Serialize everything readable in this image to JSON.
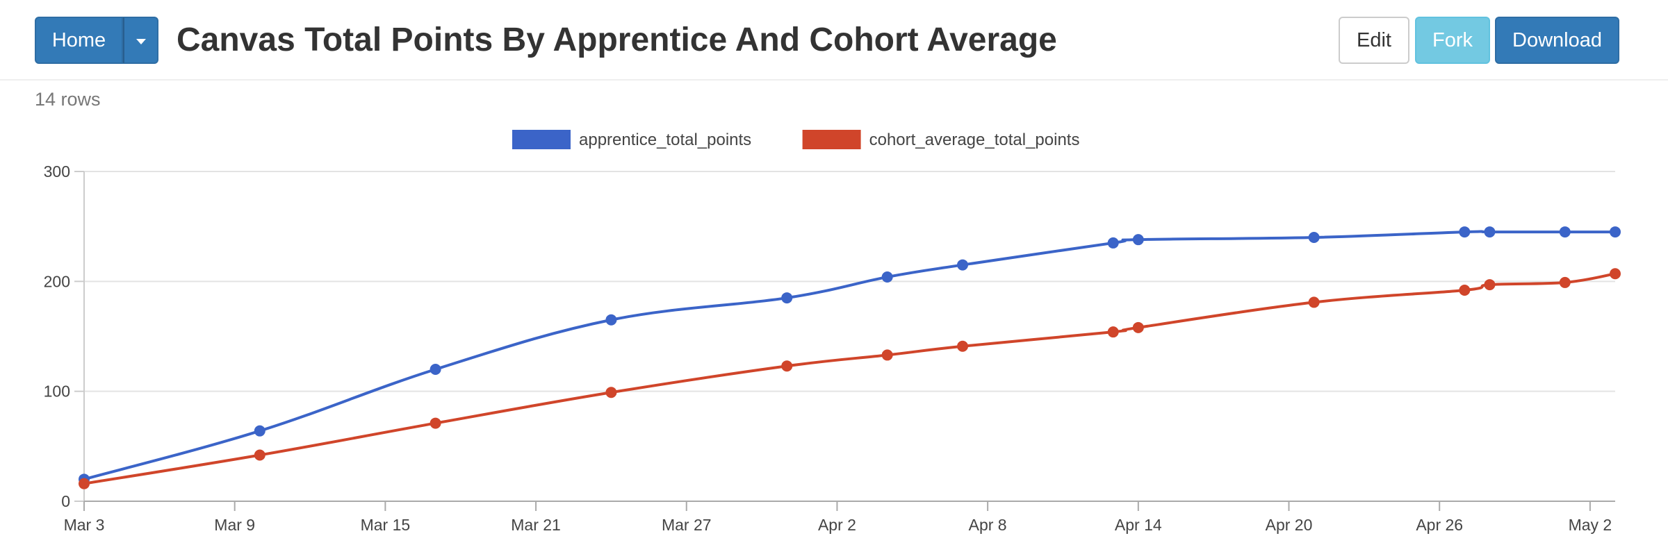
{
  "header": {
    "home_label": "Home",
    "title": "Canvas Total Points By Apprentice And Cohort Average",
    "edit_label": "Edit",
    "fork_label": "Fork",
    "download_label": "Download"
  },
  "row_count": "14 rows",
  "icons": {
    "dropdown": "caret-down-icon"
  },
  "colors": {
    "primary_button": "#337ab7",
    "fork_button": "#5bc0de",
    "apprentice_series": "#3b64c8",
    "cohort_series": "#d0452a"
  },
  "chart_data": {
    "type": "line",
    "title": "",
    "xlabel": "",
    "ylabel": "",
    "x_type": "date",
    "xlim": [
      "2024-03-03",
      "2024-05-03"
    ],
    "ylim": [
      0,
      300
    ],
    "y_ticks": [
      0,
      100,
      200,
      300
    ],
    "y_tick_labels": [
      "0",
      "100",
      "200",
      "300"
    ],
    "x_ticks": [
      "2024-03-03",
      "2024-03-09",
      "2024-03-15",
      "2024-03-21",
      "2024-03-27",
      "2024-04-02",
      "2024-04-08",
      "2024-04-14",
      "2024-04-20",
      "2024-04-26",
      "2024-05-02"
    ],
    "x_tick_labels": [
      "Mar 3",
      "Mar 9",
      "Mar 15",
      "Mar 21",
      "Mar 27",
      "Apr 2",
      "Apr 8",
      "Apr 14",
      "Apr 20",
      "Apr 26",
      "May 2"
    ],
    "grid": true,
    "legend_position": "top",
    "x": [
      "2024-03-03",
      "2024-03-10",
      "2024-03-17",
      "2024-03-24",
      "2024-03-31",
      "2024-04-04",
      "2024-04-07",
      "2024-04-13",
      "2024-04-14",
      "2024-04-21",
      "2024-04-27",
      "2024-04-28",
      "2024-05-01",
      "2024-05-03"
    ],
    "series": [
      {
        "name": "apprentice_total_points",
        "color": "#3b64c8",
        "values": [
          20,
          64,
          120,
          165,
          185,
          204,
          215,
          235,
          238,
          240,
          245,
          245,
          245,
          245
        ]
      },
      {
        "name": "cohort_average_total_points",
        "color": "#d0452a",
        "values": [
          16,
          42,
          71,
          99,
          123,
          133,
          141,
          154,
          158,
          181,
          192,
          197,
          199,
          207
        ]
      }
    ]
  }
}
